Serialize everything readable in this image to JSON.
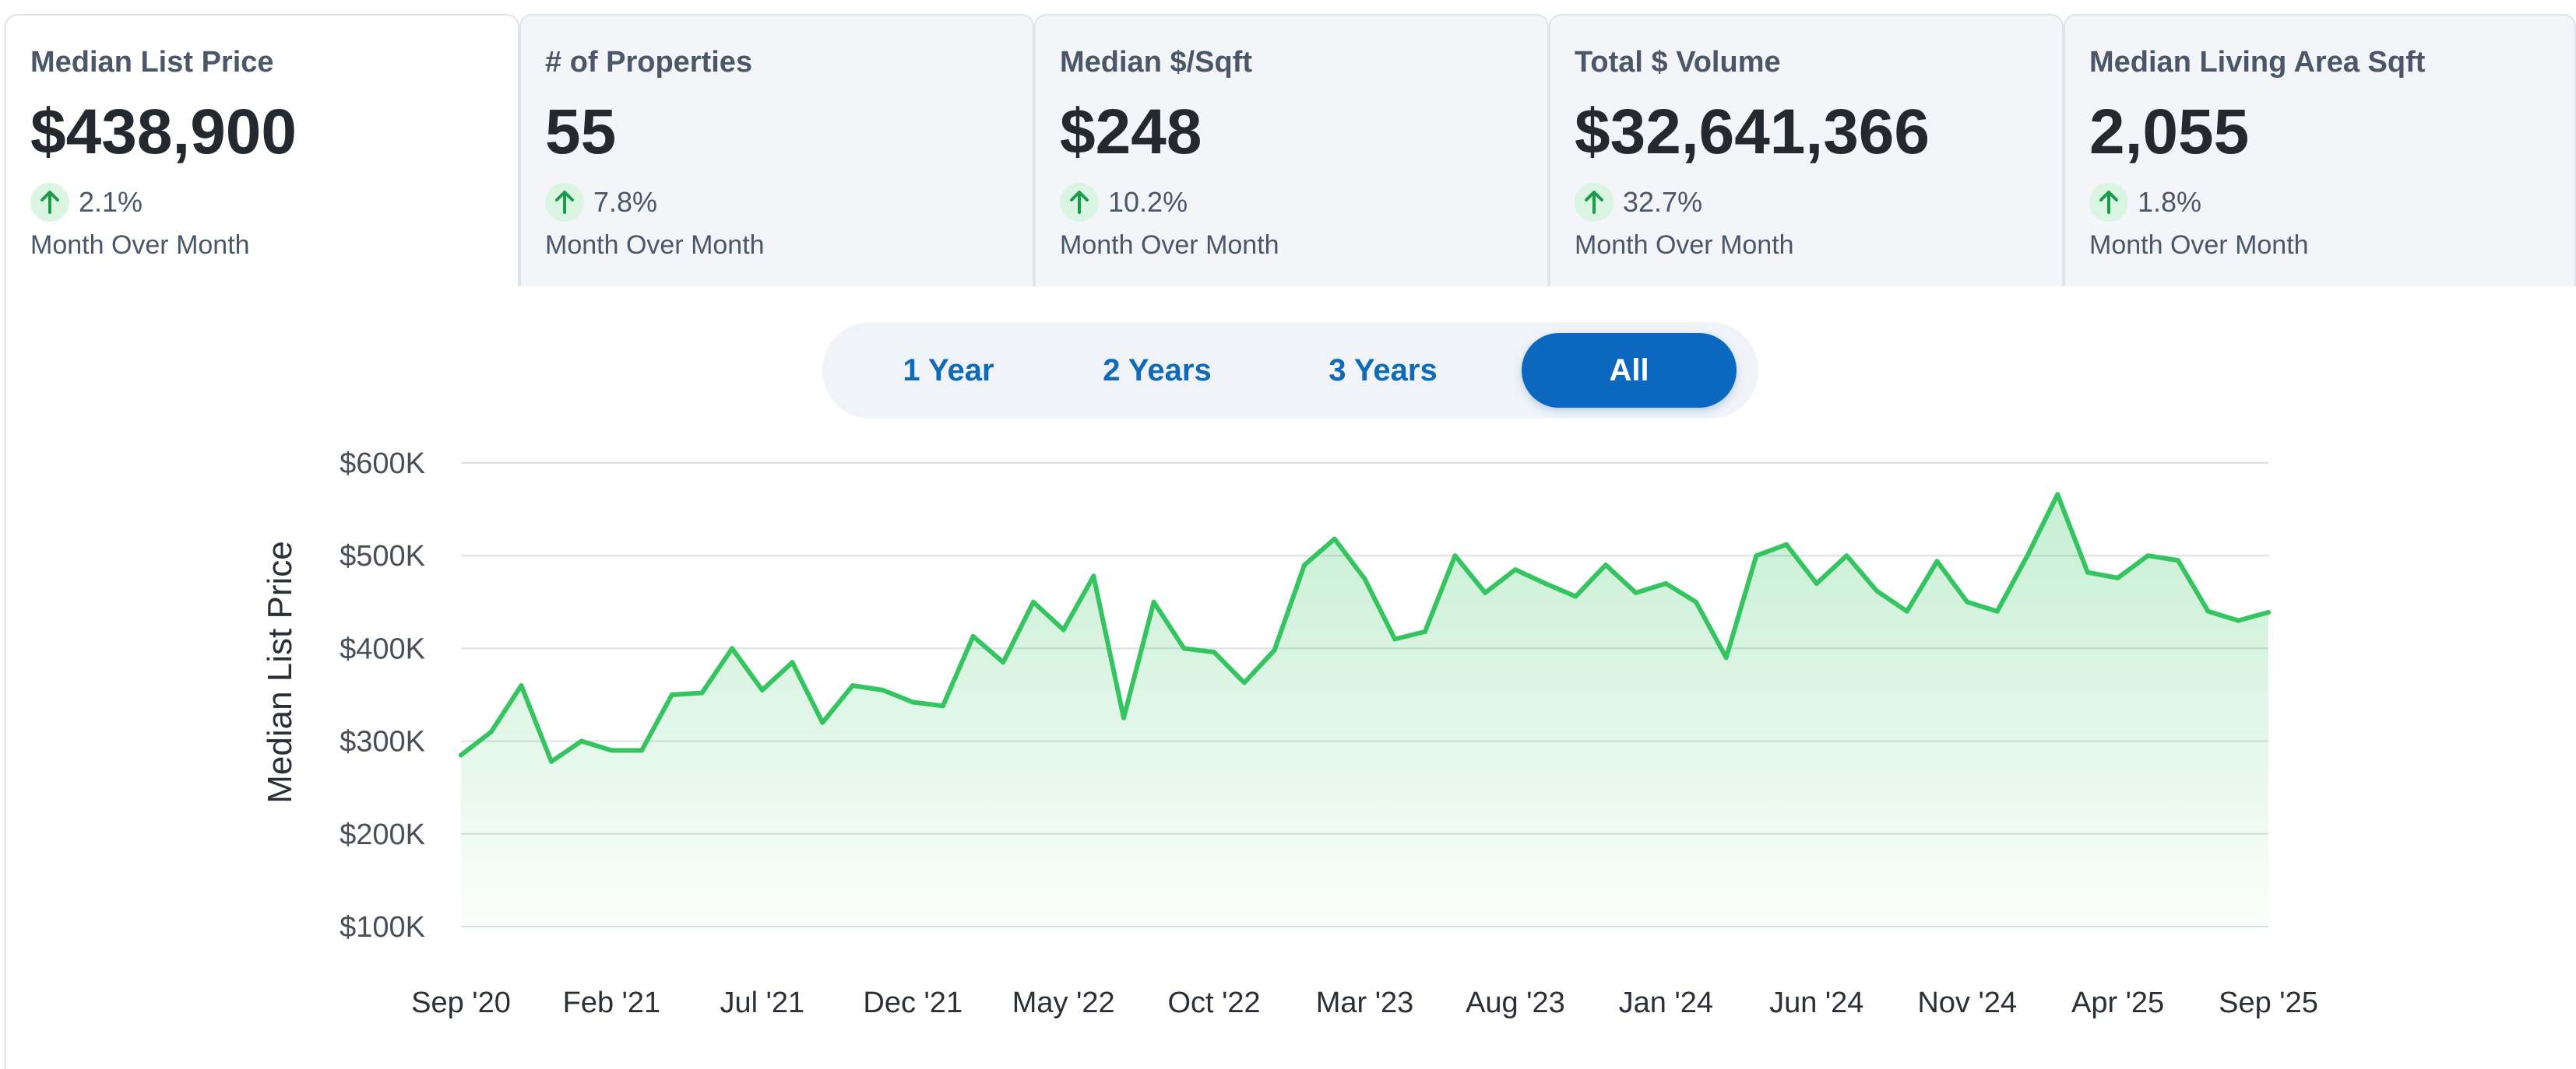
{
  "metrics": [
    {
      "title": "Median List Price",
      "value": "$438,900",
      "change": "2.1%",
      "period": "Month Over Month",
      "direction": "up"
    },
    {
      "title": "# of Properties",
      "value": "55",
      "change": "7.8%",
      "period": "Month Over Month",
      "direction": "up"
    },
    {
      "title": "Median $/Sqft",
      "value": "$248",
      "change": "10.2%",
      "period": "Month Over Month",
      "direction": "up"
    },
    {
      "title": "Total $ Volume",
      "value": "$32,641,366",
      "change": "32.7%",
      "period": "Month Over Month",
      "direction": "up"
    },
    {
      "title": "Median Living Area Sqft",
      "value": "2,055",
      "change": "1.8%",
      "period": "Month Over Month",
      "direction": "up"
    }
  ],
  "active_metric": "Median List Price",
  "range_options": [
    "1 Year",
    "2 Years",
    "3 Years",
    "All"
  ],
  "selected_range": "All",
  "colors": {
    "accent": "#0b68be",
    "line": "#34c460",
    "up_icon": "#1a9c4a",
    "up_icon_bg": "#dbf5e3"
  },
  "icons": {
    "change": "arrow-up-icon"
  },
  "chart_data": {
    "type": "area",
    "title": "",
    "xlabel": "",
    "ylabel": "Median List Price",
    "ylim": [
      100000,
      600000
    ],
    "y_ticks": [
      "$100K",
      "$200K",
      "$300K",
      "$400K",
      "$500K",
      "$600K"
    ],
    "x_ticks": [
      "Sep '20",
      "Feb '21",
      "Jul '21",
      "Dec '21",
      "May '22",
      "Oct '22",
      "Mar '23",
      "Aug '23",
      "Jan '24",
      "Jun '24",
      "Nov '24",
      "Apr '25",
      "Sep '25"
    ],
    "grid": true,
    "legend": "none",
    "series": [
      {
        "values": [
          285000,
          310000,
          360000,
          278000,
          300000,
          290000,
          290000,
          350000,
          352000,
          400000,
          355000,
          385000,
          320000,
          360000,
          355000,
          342000,
          338000,
          413000,
          385000,
          450000,
          420000,
          478000,
          325000,
          450000,
          400000,
          396000,
          363000,
          398000,
          490000,
          518000,
          475000,
          410000,
          418000,
          500000,
          460000,
          485000,
          470000,
          456000,
          490000,
          460000,
          470000,
          450000,
          390000,
          500000,
          512000,
          470000,
          500000,
          462000,
          440000,
          494000,
          450000,
          440000,
          500000,
          566000,
          482000,
          476000,
          500000,
          495000,
          440000,
          430000,
          438900
        ]
      }
    ]
  }
}
